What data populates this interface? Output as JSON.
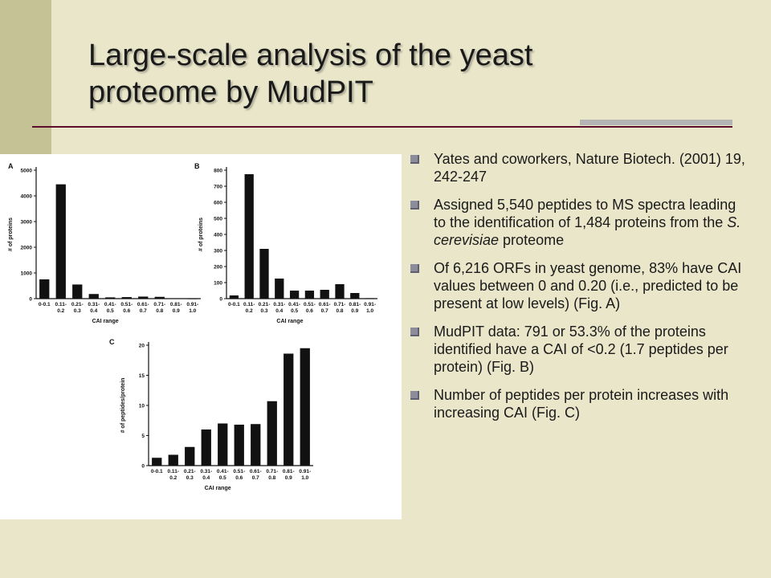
{
  "slide": {
    "title_line1": "Large-scale analysis of the yeast",
    "title_line2": "proteome by MudPIT"
  },
  "bullets": [
    {
      "text": "Yates and coworkers, Nature Biotech. (2001) 19, 242-247"
    },
    {
      "text_before": "Assigned 5,540 peptides to MS spectra leading to the identification of 1,484 proteins from the ",
      "text_italic": "S. cerevisiae",
      "text_after": " proteome"
    },
    {
      "text": "Of 6,216 ORFs in yeast genome, 83% have CAI values between 0 and 0.20 (i.e., predicted to be present at low levels) (Fig. A)"
    },
    {
      "text": "MudPIT data:  791 or 53.3% of the proteins identified have a CAI of <0.2 (1.7 peptides per protein) (Fig. B)"
    },
    {
      "text": "Number of peptides per protein increases with increasing CAI (Fig. C)"
    }
  ],
  "chart_data": [
    {
      "type": "bar",
      "panel": "A",
      "categories": [
        "0-0.1",
        "0.11-0.2",
        "0.21-0.3",
        "0.31-0.4",
        "0.41-0.5",
        "0.51-0.6",
        "0.61-0.7",
        "0.71-0.8",
        "0.81-0.9",
        "0.91-1.0"
      ],
      "values": [
        750,
        4450,
        550,
        180,
        50,
        60,
        80,
        70,
        15,
        5
      ],
      "xlabel": "CAI range",
      "ylabel": "# of proteins",
      "ylim": [
        0,
        5000
      ],
      "yticks": [
        0,
        1000,
        2000,
        3000,
        4000,
        5000
      ]
    },
    {
      "type": "bar",
      "panel": "B",
      "categories": [
        "0-0.1",
        "0.11-0.2",
        "0.21-0.3",
        "0.31-0.4",
        "0.41-0.5",
        "0.51-0.6",
        "0.61-0.7",
        "0.71-0.8",
        "0.81-0.9",
        "0.91-1.0"
      ],
      "values": [
        20,
        775,
        310,
        125,
        50,
        50,
        55,
        90,
        35,
        3
      ],
      "xlabel": "CAI range",
      "ylabel": "# of proteins",
      "ylim": [
        0,
        800
      ],
      "yticks": [
        0,
        100,
        200,
        300,
        400,
        500,
        600,
        700,
        800
      ]
    },
    {
      "type": "bar",
      "panel": "C",
      "categories": [
        "0-0.1",
        "0.11-0.2",
        "0.21-0.3",
        "0.31-0.4",
        "0.41-0.5",
        "0.51-0.6",
        "0.61-0.7",
        "0.71-0.8",
        "0.81-0.9",
        "0.91-1.0"
      ],
      "values": [
        1.3,
        1.8,
        3.1,
        6.0,
        7.0,
        6.8,
        6.9,
        10.7,
        18.6,
        19.5
      ],
      "xlabel": "CAI range",
      "ylabel": "# of peptides/protein",
      "ylim": [
        0,
        20
      ],
      "yticks": [
        0,
        5,
        10,
        15,
        20
      ]
    }
  ]
}
